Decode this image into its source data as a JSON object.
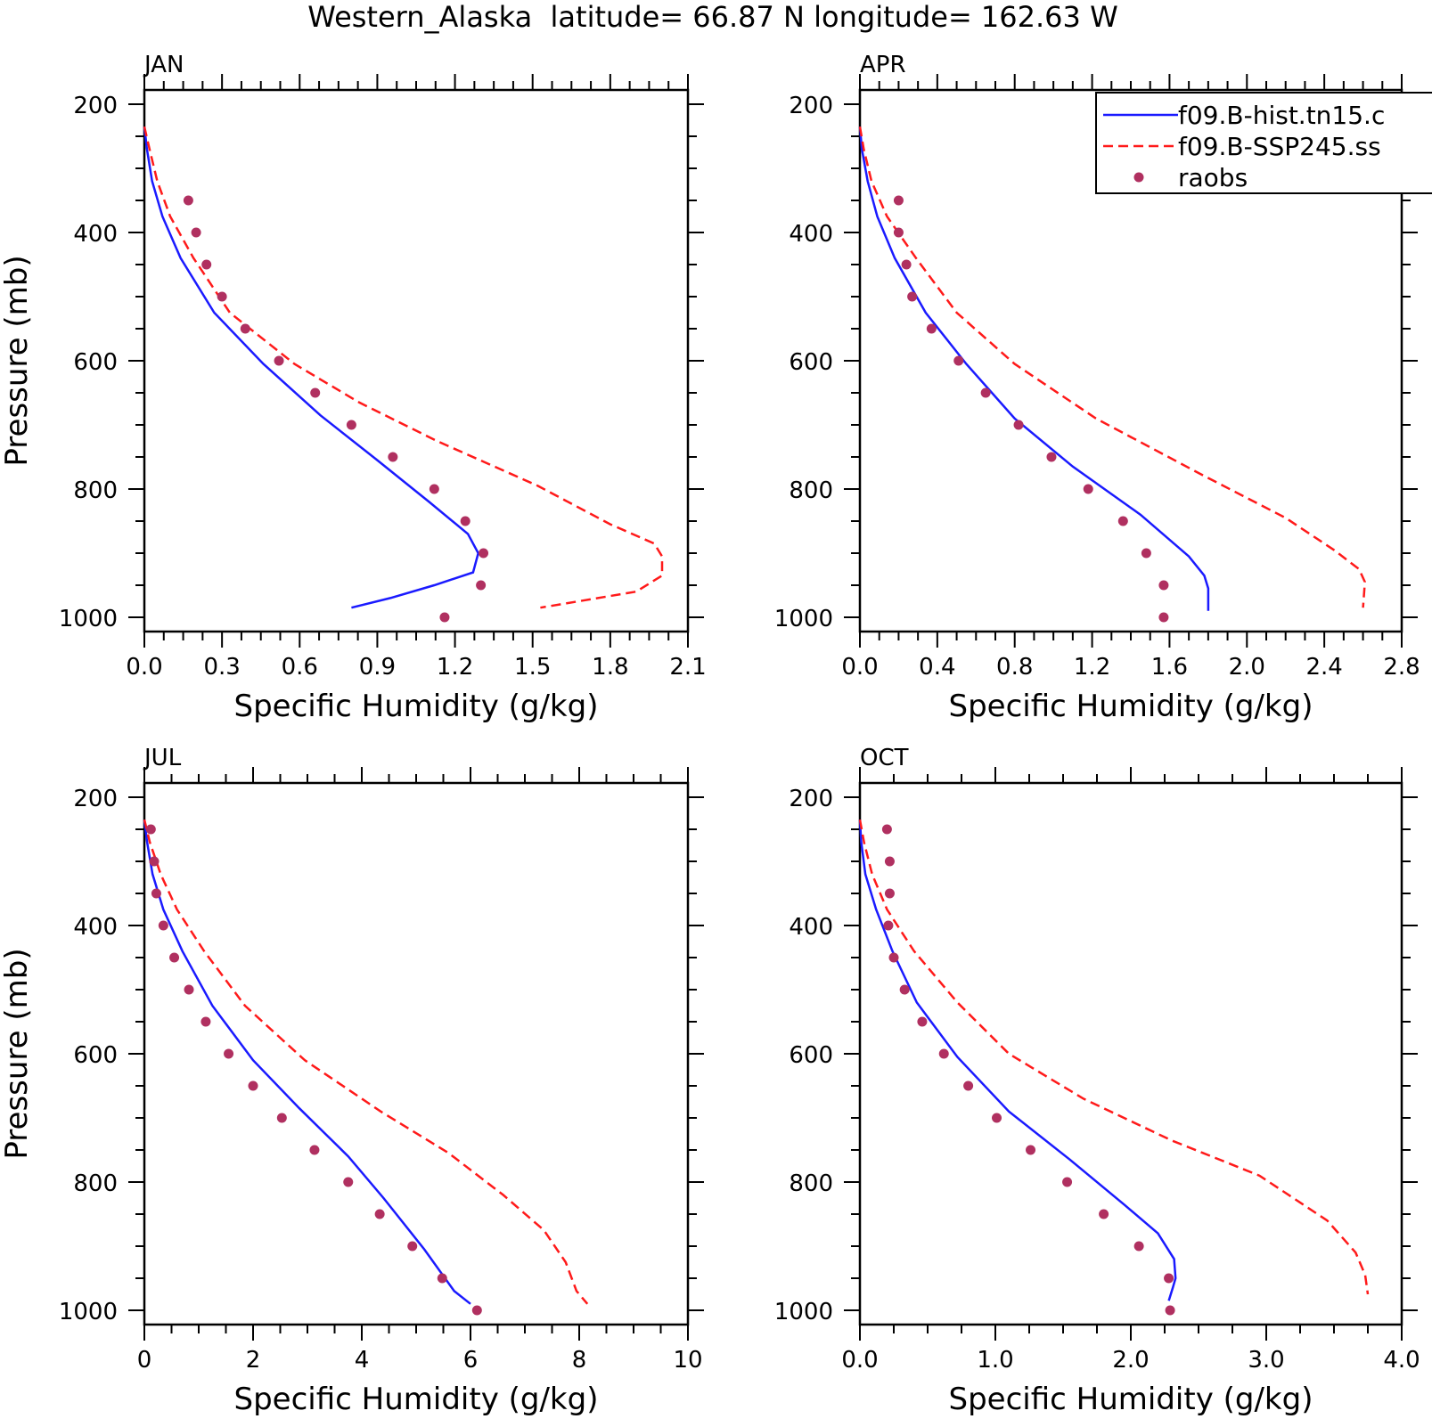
{
  "figure_title": "Western_Alaska  latitude= 66.87 N longitude= 162.63 W",
  "colors": {
    "hist": "#1a1aff",
    "ssp": "#ff1a1a",
    "raobs": "#b03060",
    "axis": "#000000"
  },
  "legend": {
    "entries": [
      {
        "label": "f09.B-hist.tn15.c",
        "style": "solid-blue-line"
      },
      {
        "label": "f09.B-SSP245.ss",
        "style": "dashed-red-line"
      },
      {
        "label": "raobs",
        "style": "purple-dot"
      }
    ]
  },
  "chart_data": [
    {
      "type": "line",
      "panel_title": "JAN",
      "xlabel": "Specific Humidity (g/kg)",
      "ylabel": "Pressure (mb)",
      "xlim": [
        0,
        2.1
      ],
      "xticks": [
        0,
        0.3,
        0.6,
        0.9,
        1.2,
        1.5,
        1.8,
        2.1
      ],
      "xtick_labels": [
        "0.0",
        "0.3",
        "0.6",
        "0.9",
        "1.2",
        "1.5",
        "1.8",
        "2.1"
      ],
      "ylim": [
        1000,
        200
      ],
      "yticks": [
        200,
        400,
        600,
        800,
        1000
      ],
      "ytick_labels": [
        "200",
        "400",
        "600",
        "800",
        "1000"
      ],
      "series": [
        {
          "name": "f09.B-hist.tn15.c",
          "style": "solid",
          "x": [
            0.0,
            0.01,
            0.03,
            0.07,
            0.14,
            0.27,
            0.46,
            0.68,
            0.9,
            1.1,
            1.25,
            1.29,
            1.27,
            1.12,
            0.95,
            0.8
          ],
          "y": [
            235,
            270,
            320,
            375,
            440,
            525,
            605,
            685,
            755,
            820,
            870,
            900,
            930,
            950,
            970,
            985
          ]
        },
        {
          "name": "f09.B-SSP245.ss",
          "style": "dashed",
          "x": [
            0.0,
            0.02,
            0.05,
            0.1,
            0.19,
            0.33,
            0.58,
            0.83,
            1.13,
            1.52,
            1.8,
            1.97,
            2.0,
            2.0,
            1.9,
            1.53
          ],
          "y": [
            235,
            270,
            320,
            375,
            440,
            525,
            605,
            665,
            725,
            795,
            855,
            885,
            905,
            935,
            960,
            985
          ]
        },
        {
          "name": "raobs",
          "style": "dots",
          "x": [
            0.17,
            0.2,
            0.24,
            0.3,
            0.39,
            0.52,
            0.66,
            0.8,
            0.96,
            1.12,
            1.24,
            1.31,
            1.3,
            1.16
          ],
          "y": [
            350,
            400,
            450,
            500,
            550,
            600,
            650,
            700,
            750,
            800,
            850,
            900,
            950,
            1000
          ]
        }
      ]
    },
    {
      "type": "line",
      "panel_title": "APR",
      "xlabel": "Specific Humidity (g/kg)",
      "ylabel": "",
      "xlim": [
        0,
        2.8
      ],
      "xticks": [
        0,
        0.4,
        0.8,
        1.2,
        1.6,
        2.0,
        2.4,
        2.8
      ],
      "xtick_labels": [
        "0.0",
        "0.4",
        "0.8",
        "1.2",
        "1.6",
        "2.0",
        "2.4",
        "2.8"
      ],
      "ylim": [
        1000,
        200
      ],
      "yticks": [
        200,
        400,
        600,
        800,
        1000
      ],
      "ytick_labels": [
        "200",
        "400",
        "600",
        "800",
        "1000"
      ],
      "series": [
        {
          "name": "f09.B-hist.tn15.c",
          "style": "solid",
          "x": [
            0.0,
            0.01,
            0.04,
            0.09,
            0.18,
            0.34,
            0.55,
            0.8,
            1.1,
            1.45,
            1.7,
            1.78,
            1.8,
            1.8
          ],
          "y": [
            235,
            270,
            320,
            375,
            440,
            525,
            605,
            690,
            765,
            840,
            905,
            935,
            955,
            990
          ]
        },
        {
          "name": "f09.B-SSP245.ss",
          "style": "dashed",
          "x": [
            0.0,
            0.02,
            0.06,
            0.14,
            0.29,
            0.5,
            0.8,
            1.22,
            1.75,
            2.2,
            2.45,
            2.58,
            2.61,
            2.6
          ],
          "y": [
            235,
            270,
            320,
            375,
            440,
            525,
            605,
            690,
            775,
            845,
            895,
            925,
            945,
            985
          ]
        },
        {
          "name": "raobs",
          "style": "dots",
          "x": [
            0.2,
            0.2,
            0.24,
            0.27,
            0.37,
            0.51,
            0.65,
            0.82,
            0.99,
            1.18,
            1.36,
            1.48,
            1.57,
            1.57
          ],
          "y": [
            350,
            400,
            450,
            500,
            550,
            600,
            650,
            700,
            750,
            800,
            850,
            900,
            950,
            1000
          ]
        }
      ]
    },
    {
      "type": "line",
      "panel_title": "JUL",
      "xlabel": "Specific Humidity (g/kg)",
      "ylabel": "Pressure (mb)",
      "xlim": [
        0,
        10
      ],
      "xticks": [
        0,
        2,
        4,
        6,
        8,
        10
      ],
      "xtick_labels": [
        "0",
        "2",
        "4",
        "6",
        "8",
        "10"
      ],
      "ylim": [
        1000,
        200
      ],
      "yticks": [
        200,
        400,
        600,
        800,
        1000
      ],
      "ytick_labels": [
        "200",
        "400",
        "600",
        "800",
        "1000"
      ],
      "series": [
        {
          "name": "f09.B-hist.tn15.c",
          "style": "solid",
          "x": [
            0.0,
            0.05,
            0.15,
            0.35,
            0.7,
            1.25,
            2.0,
            2.85,
            3.75,
            4.4,
            5.15,
            5.7,
            6.0
          ],
          "y": [
            235,
            270,
            320,
            375,
            440,
            525,
            610,
            685,
            760,
            825,
            905,
            970,
            990
          ]
        },
        {
          "name": "f09.B-SSP245.ss",
          "style": "dashed",
          "x": [
            0.0,
            0.1,
            0.3,
            0.6,
            1.1,
            1.85,
            2.95,
            4.35,
            5.6,
            6.6,
            7.35,
            7.75,
            7.95,
            8.15
          ],
          "y": [
            235,
            270,
            320,
            375,
            440,
            525,
            610,
            690,
            755,
            820,
            875,
            925,
            970,
            990
          ]
        },
        {
          "name": "raobs",
          "style": "dots",
          "x": [
            0.12,
            0.18,
            0.22,
            0.35,
            0.55,
            0.82,
            1.13,
            1.55,
            2.0,
            2.53,
            3.13,
            3.75,
            4.33,
            4.93,
            5.48,
            6.12
          ],
          "y": [
            250,
            300,
            350,
            400,
            450,
            500,
            550,
            600,
            650,
            700,
            750,
            800,
            850,
            900,
            950,
            1000
          ]
        }
      ]
    },
    {
      "type": "line",
      "panel_title": "OCT",
      "xlabel": "Specific Humidity (g/kg)",
      "ylabel": "",
      "xlim": [
        0,
        4
      ],
      "xticks": [
        0,
        1,
        2,
        3,
        4
      ],
      "xtick_labels": [
        "0.0",
        "1.0",
        "2.0",
        "3.0",
        "4.0"
      ],
      "ylim": [
        1000,
        200
      ],
      "yticks": [
        200,
        400,
        600,
        800,
        1000
      ],
      "ytick_labels": [
        "200",
        "400",
        "600",
        "800",
        "1000"
      ],
      "series": [
        {
          "name": "f09.B-hist.tn15.c",
          "style": "solid",
          "x": [
            0.0,
            0.01,
            0.04,
            0.12,
            0.24,
            0.42,
            0.72,
            1.1,
            1.55,
            1.95,
            2.2,
            2.32,
            2.33,
            2.31,
            2.28
          ],
          "y": [
            235,
            270,
            320,
            375,
            440,
            520,
            605,
            690,
            765,
            835,
            880,
            920,
            950,
            965,
            985
          ]
        },
        {
          "name": "f09.B-SSP245.ss",
          "style": "dashed",
          "x": [
            0.0,
            0.03,
            0.09,
            0.2,
            0.4,
            0.72,
            1.1,
            1.65,
            2.3,
            2.95,
            3.45,
            3.66,
            3.73,
            3.75
          ],
          "y": [
            235,
            270,
            320,
            375,
            440,
            520,
            600,
            670,
            735,
            790,
            860,
            910,
            945,
            975
          ]
        },
        {
          "name": "raobs",
          "style": "dots",
          "x": [
            0.2,
            0.22,
            0.22,
            0.21,
            0.25,
            0.33,
            0.46,
            0.62,
            0.8,
            1.01,
            1.26,
            1.53,
            1.8,
            2.06,
            2.28,
            2.29
          ],
          "y": [
            250,
            300,
            350,
            400,
            450,
            500,
            550,
            600,
            650,
            700,
            750,
            800,
            850,
            900,
            950,
            1000
          ]
        }
      ]
    }
  ]
}
